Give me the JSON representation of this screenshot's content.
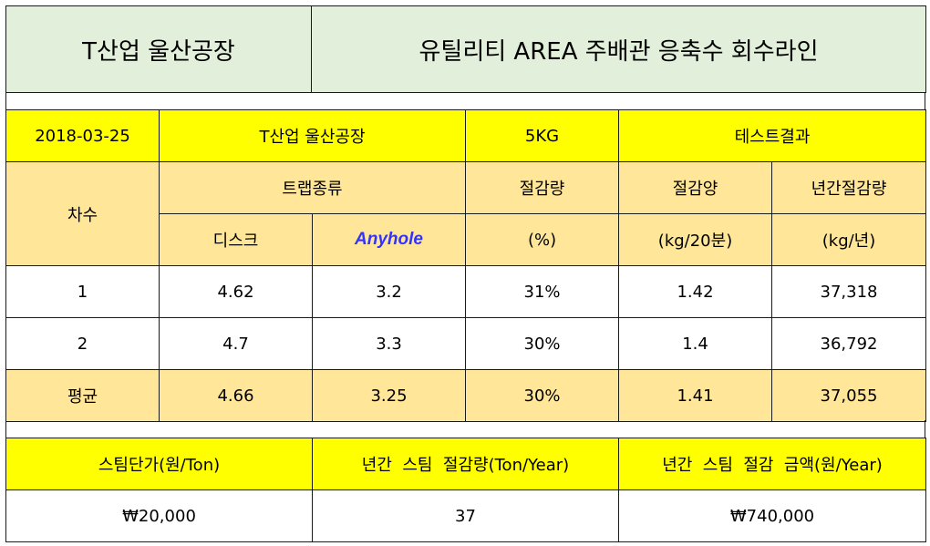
{
  "title": {
    "company": "T산업 울산공장",
    "subject": "유틸리티 AREA 주배관 응축수 회수라인"
  },
  "info_row": {
    "date": "2018-03-25",
    "company": "T산업 울산공장",
    "weight": "5KG",
    "result_label": "테스트결과"
  },
  "header": {
    "round": "차수",
    "trap_type": "트랩종류",
    "reduction_rate": "절감량",
    "reduction_amount": "절감양",
    "annual_reduction": "년간절감량",
    "disc": "디스크",
    "anyhole": "Anyhole",
    "percent_unit": "(%)",
    "kg_unit": "(kg/20분)",
    "kg_year_unit": "(kg/년)"
  },
  "rows": [
    {
      "round": "1",
      "disc": "4.62",
      "anyhole": "3.2",
      "rate": "31%",
      "amount": "1.42",
      "annual": "37,318"
    },
    {
      "round": "2",
      "disc": "4.7",
      "anyhole": "3.3",
      "rate": "30%",
      "amount": "1.4",
      "annual": "36,792"
    }
  ],
  "average": {
    "round": "평균",
    "disc": "4.66",
    "anyhole": "3.25",
    "rate": "30%",
    "amount": "1.41",
    "annual": "37,055"
  },
  "footer": {
    "steam_price_label": "스팀단가(원/Ton)",
    "annual_steam_label": "년간  스팀  절감량(Ton/Year)",
    "annual_amount_label": "년간  스팀  절감  금액(원/Year)",
    "steam_price_value": "₩20,000",
    "annual_steam_value": "37",
    "annual_amount_value": "₩740,000"
  },
  "colors": {
    "title_bg": "#e2efda",
    "yellow": "#ffff00",
    "tan": "#ffe699",
    "anyhole_text": "#3333ff"
  }
}
